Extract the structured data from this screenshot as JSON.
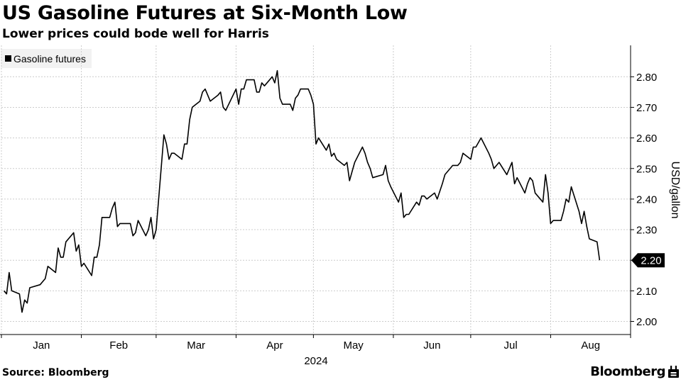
{
  "header": {
    "title": "US Gasoline Futures at Six-Month Low",
    "subtitle": "Lower prices could bode well for Harris"
  },
  "footer": {
    "source": "Source: Bloomberg",
    "brand": "Bloomberg",
    "brand_icon": "bloomberg-terminal-icon"
  },
  "colors": {
    "line": "#000000",
    "grid": "#cccccc",
    "legend_bg": "#f2f2f2",
    "last_value_bg": "#000000",
    "last_value_text": "#ffffff"
  },
  "chart_data": {
    "type": "line",
    "title": "US Gasoline Futures at Six-Month Low",
    "subtitle": "Lower prices could bode well for Harris",
    "ylabel": "USD/gallon",
    "xlabel": "2024",
    "legend": {
      "entries": [
        "Gasoline futures"
      ],
      "position": "top-left"
    },
    "ylim": [
      1.97,
      2.88
    ],
    "y_ticks": [
      2.0,
      2.1,
      2.2,
      2.3,
      2.4,
      2.5,
      2.6,
      2.7,
      2.8
    ],
    "y_tick_labels": [
      "2.00",
      "2.10",
      "2.20",
      "2.30",
      "2.40",
      "2.50",
      "2.60",
      "2.70",
      "2.80"
    ],
    "x_ticks": [
      "2024-01-01",
      "2024-02-01",
      "2024-03-01",
      "2024-04-01",
      "2024-05-01",
      "2024-06-01",
      "2024-07-01",
      "2024-08-01",
      "2024-09-01"
    ],
    "x_tick_labels": [
      "Jan",
      "Feb",
      "Mar",
      "Apr",
      "May",
      "Jun",
      "Jul",
      "Aug"
    ],
    "xlim": [
      "2024-01-01",
      "2024-08-31"
    ],
    "grid": true,
    "last_value_label": "2.20",
    "series": [
      {
        "name": "Gasoline futures",
        "points": [
          [
            "2024-01-02",
            2.1
          ],
          [
            "2024-01-03",
            2.09
          ],
          [
            "2024-01-04",
            2.16
          ],
          [
            "2024-01-05",
            2.1
          ],
          [
            "2024-01-08",
            2.09
          ],
          [
            "2024-01-09",
            2.03
          ],
          [
            "2024-01-10",
            2.07
          ],
          [
            "2024-01-11",
            2.06
          ],
          [
            "2024-01-12",
            2.11
          ],
          [
            "2024-01-16",
            2.12
          ],
          [
            "2024-01-17",
            2.13
          ],
          [
            "2024-01-18",
            2.14
          ],
          [
            "2024-01-19",
            2.18
          ],
          [
            "2024-01-22",
            2.16
          ],
          [
            "2024-01-23",
            2.24
          ],
          [
            "2024-01-24",
            2.21
          ],
          [
            "2024-01-25",
            2.21
          ],
          [
            "2024-01-26",
            2.26
          ],
          [
            "2024-01-29",
            2.29
          ],
          [
            "2024-01-30",
            2.23
          ],
          [
            "2024-01-31",
            2.25
          ],
          [
            "2024-02-01",
            2.18
          ],
          [
            "2024-02-02",
            2.19
          ],
          [
            "2024-02-05",
            2.15
          ],
          [
            "2024-02-06",
            2.21
          ],
          [
            "2024-02-07",
            2.21
          ],
          [
            "2024-02-08",
            2.25
          ],
          [
            "2024-02-09",
            2.34
          ],
          [
            "2024-02-12",
            2.34
          ],
          [
            "2024-02-13",
            2.37
          ],
          [
            "2024-02-14",
            2.39
          ],
          [
            "2024-02-15",
            2.31
          ],
          [
            "2024-02-16",
            2.32
          ],
          [
            "2024-02-20",
            2.32
          ],
          [
            "2024-02-21",
            2.28
          ],
          [
            "2024-02-22",
            2.29
          ],
          [
            "2024-02-23",
            2.33
          ],
          [
            "2024-02-26",
            2.28
          ],
          [
            "2024-02-27",
            2.3
          ],
          [
            "2024-02-28",
            2.34
          ],
          [
            "2024-02-29",
            2.27
          ],
          [
            "2024-03-01",
            2.3
          ],
          [
            "2024-03-04",
            2.61
          ],
          [
            "2024-03-05",
            2.58
          ],
          [
            "2024-03-06",
            2.53
          ],
          [
            "2024-03-07",
            2.55
          ],
          [
            "2024-03-08",
            2.55
          ],
          [
            "2024-03-11",
            2.53
          ],
          [
            "2024-03-12",
            2.58
          ],
          [
            "2024-03-13",
            2.58
          ],
          [
            "2024-03-14",
            2.66
          ],
          [
            "2024-03-15",
            2.7
          ],
          [
            "2024-03-18",
            2.72
          ],
          [
            "2024-03-19",
            2.75
          ],
          [
            "2024-03-20",
            2.76
          ],
          [
            "2024-03-21",
            2.74
          ],
          [
            "2024-03-22",
            2.72
          ],
          [
            "2024-03-25",
            2.74
          ],
          [
            "2024-03-26",
            2.75
          ],
          [
            "2024-03-27",
            2.7
          ],
          [
            "2024-03-28",
            2.69
          ],
          [
            "2024-04-01",
            2.76
          ],
          [
            "2024-04-02",
            2.71
          ],
          [
            "2024-04-03",
            2.76
          ],
          [
            "2024-04-04",
            2.76
          ],
          [
            "2024-04-05",
            2.79
          ],
          [
            "2024-04-08",
            2.79
          ],
          [
            "2024-04-09",
            2.75
          ],
          [
            "2024-04-10",
            2.75
          ],
          [
            "2024-04-11",
            2.78
          ],
          [
            "2024-04-12",
            2.77
          ],
          [
            "2024-04-15",
            2.8
          ],
          [
            "2024-04-16",
            2.78
          ],
          [
            "2024-04-17",
            2.82
          ],
          [
            "2024-04-18",
            2.73
          ],
          [
            "2024-04-19",
            2.71
          ],
          [
            "2024-04-22",
            2.71
          ],
          [
            "2024-04-23",
            2.69
          ],
          [
            "2024-04-24",
            2.73
          ],
          [
            "2024-04-25",
            2.74
          ],
          [
            "2024-04-26",
            2.76
          ],
          [
            "2024-04-29",
            2.76
          ],
          [
            "2024-04-30",
            2.74
          ],
          [
            "2024-05-01",
            2.71
          ],
          [
            "2024-05-02",
            2.58
          ],
          [
            "2024-05-03",
            2.6
          ],
          [
            "2024-05-06",
            2.56
          ],
          [
            "2024-05-07",
            2.58
          ],
          [
            "2024-05-08",
            2.54
          ],
          [
            "2024-05-09",
            2.55
          ],
          [
            "2024-05-10",
            2.53
          ],
          [
            "2024-05-13",
            2.51
          ],
          [
            "2024-05-14",
            2.52
          ],
          [
            "2024-05-15",
            2.46
          ],
          [
            "2024-05-16",
            2.49
          ],
          [
            "2024-05-17",
            2.52
          ],
          [
            "2024-05-20",
            2.57
          ],
          [
            "2024-05-21",
            2.55
          ],
          [
            "2024-05-22",
            2.52
          ],
          [
            "2024-05-23",
            2.5
          ],
          [
            "2024-05-24",
            2.47
          ],
          [
            "2024-05-28",
            2.48
          ],
          [
            "2024-05-29",
            2.51
          ],
          [
            "2024-05-30",
            2.46
          ],
          [
            "2024-05-31",
            2.44
          ],
          [
            "2024-06-03",
            2.39
          ],
          [
            "2024-06-04",
            2.42
          ],
          [
            "2024-06-05",
            2.34
          ],
          [
            "2024-06-06",
            2.35
          ],
          [
            "2024-06-07",
            2.35
          ],
          [
            "2024-06-10",
            2.39
          ],
          [
            "2024-06-11",
            2.38
          ],
          [
            "2024-06-12",
            2.41
          ],
          [
            "2024-06-13",
            2.41
          ],
          [
            "2024-06-14",
            2.4
          ],
          [
            "2024-06-17",
            2.42
          ],
          [
            "2024-06-18",
            2.4
          ],
          [
            "2024-06-20",
            2.45
          ],
          [
            "2024-06-21",
            2.48
          ],
          [
            "2024-06-24",
            2.51
          ],
          [
            "2024-06-25",
            2.51
          ],
          [
            "2024-06-26",
            2.51
          ],
          [
            "2024-06-27",
            2.52
          ],
          [
            "2024-06-28",
            2.55
          ],
          [
            "2024-07-01",
            2.53
          ],
          [
            "2024-07-02",
            2.57
          ],
          [
            "2024-07-03",
            2.57
          ],
          [
            "2024-07-05",
            2.6
          ],
          [
            "2024-07-08",
            2.55
          ],
          [
            "2024-07-09",
            2.53
          ],
          [
            "2024-07-10",
            2.5
          ],
          [
            "2024-07-11",
            2.51
          ],
          [
            "2024-07-12",
            2.52
          ],
          [
            "2024-07-15",
            2.48
          ],
          [
            "2024-07-16",
            2.5
          ],
          [
            "2024-07-17",
            2.52
          ],
          [
            "2024-07-18",
            2.45
          ],
          [
            "2024-07-19",
            2.47
          ],
          [
            "2024-07-22",
            2.42
          ],
          [
            "2024-07-23",
            2.45
          ],
          [
            "2024-07-24",
            2.47
          ],
          [
            "2024-07-25",
            2.46
          ],
          [
            "2024-07-26",
            2.42
          ],
          [
            "2024-07-29",
            2.39
          ],
          [
            "2024-07-30",
            2.48
          ],
          [
            "2024-07-31",
            2.42
          ],
          [
            "2024-08-01",
            2.32
          ],
          [
            "2024-08-02",
            2.33
          ],
          [
            "2024-08-05",
            2.33
          ],
          [
            "2024-08-06",
            2.36
          ],
          [
            "2024-08-07",
            2.4
          ],
          [
            "2024-08-08",
            2.39
          ],
          [
            "2024-08-09",
            2.44
          ],
          [
            "2024-08-12",
            2.36
          ],
          [
            "2024-08-13",
            2.32
          ],
          [
            "2024-08-14",
            2.36
          ],
          [
            "2024-08-15",
            2.31
          ],
          [
            "2024-08-16",
            2.27
          ],
          [
            "2024-08-19",
            2.26
          ],
          [
            "2024-08-20",
            2.2
          ]
        ]
      }
    ]
  }
}
